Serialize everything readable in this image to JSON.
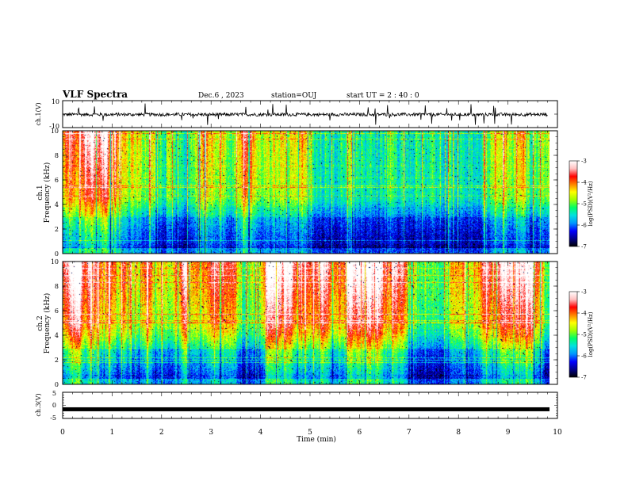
{
  "header": {
    "title": "VLF Spectra",
    "date": "Dec.6 , 2023",
    "station": "station=OUJ",
    "start_ut": "start UT = 2 : 40 : 0"
  },
  "colors": {
    "trace": "#000000",
    "colormap": [
      "#000000",
      "#00008b",
      "#0000ff",
      "#0096ff",
      "#00e0e0",
      "#00ff66",
      "#a0ff00",
      "#ffff00",
      "#ff8000",
      "#ff0000",
      "#ffc0c0",
      "#ffffff"
    ]
  },
  "chart_data": [
    {
      "panel": "ch1-waveform",
      "type": "line",
      "ylabel": "ch.1(V)",
      "ylim": [
        -10,
        10
      ],
      "yticks": [
        "10",
        "-10"
      ],
      "xlim": [
        0,
        10
      ]
    },
    {
      "panel": "ch1-spectrogram",
      "type": "heatmap",
      "ylabel": "ch.1\nFrequency (kHz)",
      "ylim": [
        0,
        10
      ],
      "yticks": [
        "10",
        "8",
        "6",
        "4",
        "2",
        "0"
      ],
      "xlim": [
        0,
        10
      ],
      "colorbar": {
        "label": "log(PSD)(V²/Hz)",
        "range": [
          -7,
          -3
        ],
        "ticks": [
          "-3",
          "-4",
          "-5",
          "-6",
          "-7"
        ]
      }
    },
    {
      "panel": "ch2-spectrogram",
      "type": "heatmap",
      "ylabel": "ch.2\nFrequency (kHz)",
      "ylim": [
        0,
        10
      ],
      "yticks": [
        "10",
        "8",
        "6",
        "4",
        "2",
        "0"
      ],
      "xlim": [
        0,
        10
      ],
      "colorbar": {
        "label": "log(PSD)(V²/Hz)",
        "range": [
          -7,
          -3
        ],
        "ticks": [
          "-3",
          "-4",
          "-5",
          "-6",
          "-7"
        ]
      }
    },
    {
      "panel": "ch3-waveform",
      "type": "line",
      "ylabel": "ch.3(V)",
      "ylim": [
        -5,
        5
      ],
      "yticks": [
        "5",
        "0",
        "-5"
      ],
      "xlim": [
        0,
        10
      ],
      "approx_level": -1.5
    }
  ],
  "xaxis": {
    "label": "Time (min)",
    "ticks": [
      "0",
      "1",
      "2",
      "3",
      "4",
      "5",
      "6",
      "7",
      "8",
      "9",
      "10"
    ]
  }
}
